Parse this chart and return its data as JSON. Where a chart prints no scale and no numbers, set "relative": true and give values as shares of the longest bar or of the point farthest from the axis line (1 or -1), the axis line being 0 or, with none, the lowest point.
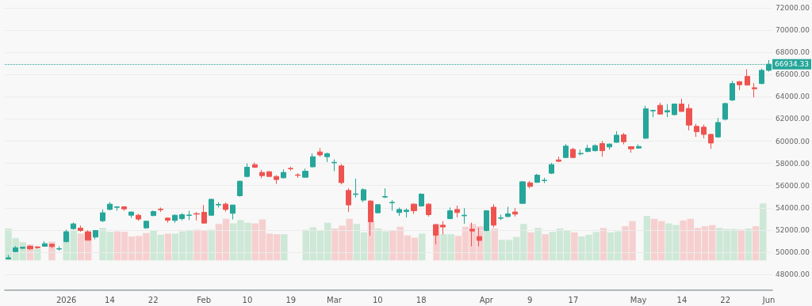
{
  "chart_data": [
    {
      "type": "candlestick",
      "categories": [
        null,
        null,
        null,
        null,
        null,
        null,
        null,
        null,
        "2026",
        null,
        null,
        null,
        null,
        null,
        "14",
        null,
        null,
        null,
        null,
        null,
        "22",
        null,
        null,
        null,
        null,
        null,
        null,
        "Feb",
        null,
        null,
        null,
        null,
        null,
        "10",
        null,
        null,
        null,
        null,
        null,
        "19",
        null,
        null,
        null,
        null,
        null,
        "Mar",
        null,
        null,
        null,
        null,
        null,
        "10",
        null,
        null,
        null,
        null,
        null,
        "18",
        null,
        null,
        null,
        null,
        null,
        null,
        null,
        null,
        "Apr",
        null,
        null,
        null,
        null,
        null,
        "9",
        null,
        null,
        null,
        null,
        null,
        "17",
        null,
        null,
        null,
        null,
        null,
        null,
        null,
        null,
        "May",
        null,
        null,
        null,
        null,
        null,
        "14",
        null,
        null,
        null,
        null,
        null,
        "22",
        null,
        null,
        null,
        null,
        null,
        "Jun"
      ],
      "ohlc": [
        [
          49400,
          49750,
          49350,
          49500
        ],
        [
          50050,
          50550,
          50000,
          50400
        ],
        [
          50350,
          50500,
          50300,
          50450
        ],
        [
          50530,
          50650,
          50220,
          50300
        ],
        [
          50480,
          50550,
          50300,
          50400
        ],
        [
          50530,
          50980,
          50500,
          50770
        ],
        [
          50720,
          50770,
          50340,
          50510
        ],
        [
          50280,
          50530,
          50130,
          50320
        ],
        [
          50950,
          52030,
          50880,
          51850
        ],
        [
          52120,
          52670,
          52030,
          52550
        ],
        [
          52170,
          52400,
          51840,
          51950
        ],
        [
          51840,
          51980,
          51070,
          51080
        ],
        [
          51360,
          52000,
          51170,
          51950
        ],
        [
          52830,
          53850,
          52710,
          53550
        ],
        [
          53850,
          54510,
          53800,
          54330
        ],
        [
          54040,
          54140,
          53730,
          54080
        ],
        [
          54090,
          54140,
          53730,
          53900
        ],
        [
          53330,
          53650,
          53090,
          53620
        ],
        [
          53330,
          53450,
          52830,
          52980
        ],
        [
          52190,
          52830,
          52100,
          52790
        ],
        [
          53300,
          53750,
          53250,
          53660
        ],
        [
          53870,
          54020,
          53620,
          53830
        ],
        [
          53070,
          53120,
          52660,
          52880
        ],
        [
          52860,
          53400,
          52650,
          53330
        ],
        [
          53020,
          53520,
          52860,
          53380
        ],
        [
          53310,
          53730,
          52900,
          53350
        ],
        [
          53470,
          53620,
          52860,
          53430
        ],
        [
          53590,
          54250,
          52620,
          52620
        ],
        [
          53330,
          54830,
          53260,
          54760
        ],
        [
          54260,
          54510,
          54020,
          54300
        ],
        [
          54330,
          54490,
          53660,
          53850
        ],
        [
          53500,
          54260,
          52950,
          54250
        ],
        [
          55090,
          56460,
          54990,
          56390
        ],
        [
          56820,
          58000,
          56750,
          57650
        ],
        [
          57890,
          58070,
          57570,
          57650
        ],
        [
          57180,
          57410,
          56650,
          56890
        ],
        [
          57250,
          57300,
          56800,
          56820
        ],
        [
          56820,
          56940,
          56150,
          56540
        ],
        [
          56700,
          57460,
          56650,
          57180
        ],
        [
          57550,
          57700,
          57340,
          57510
        ],
        [
          56960,
          57110,
          56700,
          56920
        ],
        [
          56750,
          57530,
          56700,
          57290
        ],
        [
          57690,
          58900,
          57640,
          58600
        ],
        [
          59030,
          59380,
          58600,
          58760
        ],
        [
          58600,
          58950,
          58120,
          58880
        ],
        [
          58050,
          58360,
          57290,
          58090
        ],
        [
          57770,
          57930,
          56110,
          56270
        ],
        [
          55560,
          55750,
          53620,
          54260
        ],
        [
          55200,
          56630,
          54920,
          55250
        ],
        [
          54690,
          55750,
          54510,
          55630
        ],
        [
          54610,
          54690,
          51480,
          52740
        ],
        [
          53550,
          54300,
          53500,
          54280
        ],
        [
          54970,
          55750,
          54870,
          55010
        ],
        [
          54450,
          54690,
          53730,
          54490
        ],
        [
          53570,
          54020,
          53260,
          53850
        ],
        [
          53660,
          53950,
          53120,
          53780
        ],
        [
          54330,
          54400,
          53450,
          53730
        ],
        [
          54160,
          55300,
          54100,
          55230
        ],
        [
          54330,
          54400,
          53210,
          53380
        ],
        [
          52480,
          52550,
          50700,
          51530
        ],
        [
          52430,
          52790,
          51600,
          52270
        ],
        [
          53020,
          54020,
          52970,
          53730
        ],
        [
          53850,
          54200,
          53140,
          53570
        ],
        [
          53280,
          53970,
          52550,
          53330
        ],
        [
          52070,
          52670,
          50530,
          51910
        ],
        [
          51410,
          52190,
          50530,
          51060
        ],
        [
          51950,
          53790,
          51900,
          53730
        ],
        [
          54050,
          54330,
          52240,
          52430
        ],
        [
          53050,
          53380,
          52900,
          53090
        ],
        [
          53210,
          54090,
          53140,
          53450
        ],
        [
          53620,
          53970,
          53210,
          53430
        ],
        [
          54400,
          56410,
          54330,
          56340
        ],
        [
          56250,
          56410,
          55750,
          55920
        ],
        [
          56290,
          57060,
          56250,
          56940
        ],
        [
          56440,
          56700,
          56220,
          56480
        ],
        [
          57110,
          58040,
          57030,
          57890
        ],
        [
          58310,
          58600,
          58120,
          58190
        ],
        [
          58530,
          59740,
          58480,
          59550
        ],
        [
          59260,
          59400,
          58480,
          58530
        ],
        [
          58860,
          59240,
          58710,
          58900
        ],
        [
          59070,
          59670,
          59000,
          59360
        ],
        [
          59140,
          59710,
          59070,
          59600
        ],
        [
          59780,
          60020,
          58600,
          59140
        ],
        [
          59480,
          59780,
          59240,
          59740
        ],
        [
          59900,
          60900,
          59870,
          60540
        ],
        [
          60570,
          60740,
          59710,
          59950
        ],
        [
          59500,
          59550,
          58960,
          59310
        ],
        [
          59380,
          59710,
          59310,
          59520
        ],
        [
          60260,
          63180,
          60190,
          62910
        ],
        [
          62730,
          62820,
          62160,
          62770
        ],
        [
          63230,
          63460,
          62390,
          62440
        ],
        [
          62630,
          63340,
          62160,
          62750
        ],
        [
          62390,
          63390,
          62320,
          63340
        ],
        [
          63340,
          63820,
          62630,
          62680
        ],
        [
          62940,
          63340,
          60970,
          61450
        ],
        [
          61330,
          61560,
          60380,
          60850
        ],
        [
          61260,
          61490,
          60260,
          60610
        ],
        [
          60610,
          60660,
          59310,
          59830
        ],
        [
          60380,
          62090,
          60300,
          61680
        ],
        [
          61970,
          63460,
          61870,
          63390
        ],
        [
          63700,
          65430,
          63620,
          65190
        ],
        [
          65360,
          65400,
          64600,
          65080
        ],
        [
          65830,
          66470,
          65000,
          65050
        ],
        [
          64810,
          65240,
          63940,
          64720
        ],
        [
          65190,
          66540,
          65120,
          66380
        ],
        [
          66380,
          67300,
          66260,
          66934.33
        ]
      ],
      "colors": [
        "#26a69a",
        "#26a69a",
        "#26a69a",
        "#ef5350",
        "#ef5350",
        "#26a69a",
        "#ef5350",
        "#26a69a",
        "#26a69a",
        "#26a69a",
        "#ef5350",
        "#ef5350",
        "#26a69a",
        "#26a69a",
        "#26a69a",
        "#26a69a",
        "#ef5350",
        "#26a69a",
        "#ef5350",
        "#26a69a",
        "#26a69a",
        "#ef5350",
        "#ef5350",
        "#26a69a",
        "#26a69a",
        "#26a69a",
        "#ef5350",
        "#ef5350",
        "#26a69a",
        "#26a69a",
        "#ef5350",
        "#26a69a",
        "#26a69a",
        "#26a69a",
        "#ef5350",
        "#ef5350",
        "#ef5350",
        "#ef5350",
        "#26a69a",
        "#ef5350",
        "#ef5350",
        "#26a69a",
        "#26a69a",
        "#ef5350",
        "#26a69a",
        "#26a69a",
        "#ef5350",
        "#ef5350",
        "#26a69a",
        "#26a69a",
        "#ef5350",
        "#26a69a",
        "#26a69a",
        "#26a69a",
        "#26a69a",
        "#26a69a",
        "#ef5350",
        "#26a69a",
        "#ef5350",
        "#ef5350",
        "#ef5350",
        "#26a69a",
        "#ef5350",
        "#26a69a",
        "#ef5350",
        "#ef5350",
        "#26a69a",
        "#ef5350",
        "#26a69a",
        "#26a69a",
        "#ef5350",
        "#26a69a",
        "#ef5350",
        "#26a69a",
        "#26a69a",
        "#26a69a",
        "#ef5350",
        "#26a69a",
        "#ef5350",
        "#26a69a",
        "#26a69a",
        "#26a69a",
        "#ef5350",
        "#26a69a",
        "#26a69a",
        "#ef5350",
        "#ef5350",
        "#26a69a",
        "#26a69a",
        "#26a69a",
        "#ef5350",
        "#26a69a",
        "#26a69a",
        "#ef5350",
        "#ef5350",
        "#ef5350",
        "#ef5350",
        "#ef5350",
        "#26a69a",
        "#26a69a",
        "#26a69a",
        "#ef5350",
        "#ef5350",
        "#ef5350",
        "#26a69a",
        "#26a69a"
      ],
      "ylim": [
        46600,
        72000
      ],
      "yticks": [
        {
          "value": 48000,
          "label": "48000.00"
        },
        {
          "value": 50000,
          "label": "50000.00"
        },
        {
          "value": 52000,
          "label": "52000.00"
        },
        {
          "value": 54000,
          "label": "54000.00"
        },
        {
          "value": 56000,
          "label": "56000.00"
        },
        {
          "value": 58000,
          "label": "58000.00"
        },
        {
          "value": 60000,
          "label": "60000.00"
        },
        {
          "value": 62000,
          "label": "62000.00"
        },
        {
          "value": 64000,
          "label": "64000.00"
        },
        {
          "value": 66000,
          "label": "66000.00"
        },
        {
          "value": 68000,
          "label": "68000.00"
        },
        {
          "value": 70000,
          "label": "70000.00"
        },
        {
          "value": 72000,
          "label": "72000.00"
        }
      ],
      "grid": "y",
      "ref_lines": [
        {
          "axis": "y",
          "value": 66934.33,
          "label": "66934.33",
          "color": "#26a69a",
          "line_style": "dotted"
        }
      ]
    },
    {
      "type": "bar",
      "relative": true,
      "categories": [
        null,
        null,
        null,
        null,
        null,
        null,
        null,
        null,
        null,
        null,
        null,
        null,
        null,
        null,
        null,
        null,
        null,
        null,
        null,
        null,
        null,
        null,
        null,
        null,
        null,
        null,
        null,
        null,
        null,
        null,
        null,
        null,
        null,
        null,
        null,
        null,
        null,
        null,
        null,
        null,
        null,
        null,
        null,
        null,
        null,
        null,
        null,
        null,
        null,
        null,
        null,
        null,
        null,
        null,
        null,
        null,
        null,
        null,
        null,
        null,
        null,
        null,
        null,
        null,
        null,
        null,
        null,
        null,
        null,
        null,
        null,
        null,
        null,
        null,
        null,
        null,
        null,
        null,
        null,
        null,
        null,
        null,
        null,
        null,
        null,
        null,
        null,
        null,
        null,
        null,
        null,
        null,
        null,
        null,
        null,
        null,
        null,
        null,
        null,
        null,
        null,
        null,
        null,
        null,
        null,
        null
      ],
      "values": [
        0.56,
        0.39,
        0.32,
        0.28,
        0.2,
        null,
        0.33,
        null,
        0.48,
        0.53,
        0.47,
        0.5,
        null,
        0.57,
        0.5,
        0.51,
        0.5,
        0.42,
        0.43,
        0.48,
        0.52,
        0.45,
        0.47,
        0.47,
        0.51,
        0.53,
        0.54,
        0.53,
        0.54,
        0.64,
        0.73,
        0.65,
        0.71,
        0.66,
        0.65,
        0.72,
        0.47,
        0.46,
        0.46,
        null,
        null,
        0.54,
        0.58,
        0.53,
        0.66,
        0.56,
        0.61,
        0.73,
        0.64,
        0.49,
        0.69,
        0.56,
        0.51,
        0.53,
        0.59,
        0.44,
        0.4,
        0.47,
        null,
        0.64,
        0.46,
        0.46,
        0.43,
        0.59,
        0.64,
        0.6,
        0.53,
        0.56,
        0.36,
        0.36,
        0.41,
        0.64,
        0.49,
        0.57,
        0.46,
        0.5,
        0.56,
        0.52,
        0.49,
        0.42,
        0.45,
        0.5,
        0.57,
        0.49,
        0.51,
        0.6,
        0.69,
        null,
        0.78,
        0.73,
        0.69,
        0.65,
        0.62,
        0.7,
        0.73,
        0.57,
        0.6,
        0.62,
        0.57,
        0.55,
        0.55,
        0.54,
        0.56,
        0.6,
        1,
        null
      ],
      "colors": [
        "#cde8d6",
        "#cde8d6",
        "#cde8d6",
        "#f6d0d0",
        "#cde8d6",
        "#cde8d6",
        "#f6d0d0",
        "#cde8d6",
        "#cde8d6",
        "#cde8d6",
        "#f6d0d0",
        "#f6d0d0",
        "#cde8d6",
        "#cde8d6",
        "#cde8d6",
        "#f6d0d0",
        "#f6d0d0",
        "#f6d0d0",
        "#f6d0d0",
        "#f6d0d0",
        "#cde8d6",
        "#cde8d6",
        "#f6d0d0",
        "#cde8d6",
        "#cde8d6",
        "#cde8d6",
        "#f6d0d0",
        "#f6d0d0",
        "#cde8d6",
        "#f6d0d0",
        "#f6d0d0",
        "#cde8d6",
        "#cde8d6",
        "#cde8d6",
        "#f6d0d0",
        "#f6d0d0",
        "#f6d0d0",
        "#f6d0d0",
        "#cde8d6",
        "#cde8d6",
        "#cde8d6",
        "#cde8d6",
        "#cde8d6",
        "#cde8d6",
        "#cde8d6",
        "#f6d0d0",
        "#f6d0d0",
        "#f6d0d0",
        "#cde8d6",
        "#cde8d6",
        "#f6d0d0",
        "#cde8d6",
        "#cde8d6",
        "#f6d0d0",
        "#f6d0d0",
        "#f6d0d0",
        "#f6d0d0",
        "#cde8d6",
        "#cde8d6",
        "#f6d0d0",
        "#cde8d6",
        "#cde8d6",
        "#f6d0d0",
        "#f6d0d0",
        "#f6d0d0",
        "#f6d0d0",
        "#cde8d6",
        "#f6d0d0",
        "#cde8d6",
        "#cde8d6",
        "#cde8d6",
        "#cde8d6",
        "#f6d0d0",
        "#cde8d6",
        "#f6d0d0",
        "#cde8d6",
        "#cde8d6",
        "#cde8d6",
        "#f6d0d0",
        "#cde8d6",
        "#cde8d6",
        "#cde8d6",
        "#f6d0d0",
        "#cde8d6",
        "#cde8d6",
        "#f6d0d0",
        "#f6d0d0",
        "#cde8d6",
        "#cde8d6",
        "#f6d0d0",
        "#f6d0d0",
        "#cde8d6",
        "#cde8d6",
        "#f6d0d0",
        "#f6d0d0",
        "#f6d0d0",
        "#f6d0d0",
        "#f6d0d0",
        "#cde8d6",
        "#cde8d6",
        "#cde8d6",
        "#f6d0d0",
        "#cde8d6",
        "#f6d0d0",
        "#cde8d6",
        "#cde8d6"
      ]
    }
  ]
}
